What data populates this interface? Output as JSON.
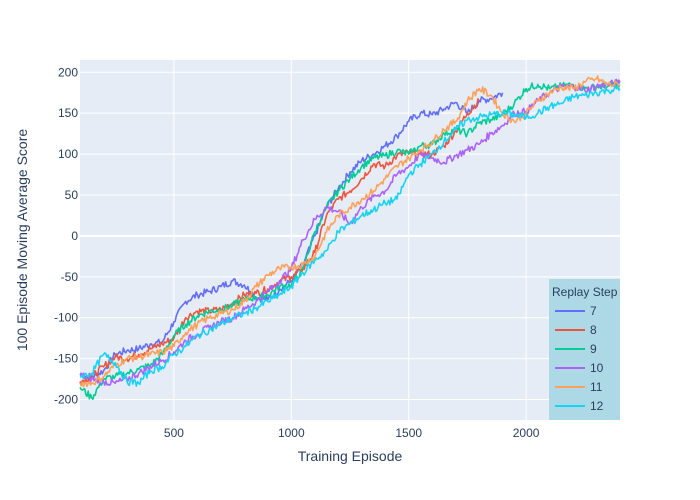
{
  "chart_data": {
    "type": "line",
    "title": "",
    "xlabel": "Training Episode",
    "ylabel": "100 Episode Moving Average Score",
    "xlim": [
      100,
      2400
    ],
    "ylim": [
      -225,
      215
    ],
    "x_ticks": [
      500,
      1000,
      1500,
      2000
    ],
    "y_ticks": [
      -200,
      -150,
      -100,
      -50,
      0,
      50,
      100,
      150,
      200
    ],
    "grid": true,
    "legend": {
      "title": "Replay Step",
      "placement": "bottom-right"
    },
    "series": [
      {
        "name": "7",
        "color": "#636efa",
        "points": [
          [
            100,
            -170
          ],
          [
            150,
            -172
          ],
          [
            200,
            -165
          ],
          [
            250,
            -145
          ],
          [
            300,
            -140
          ],
          [
            350,
            -138
          ],
          [
            400,
            -132
          ],
          [
            450,
            -130
          ],
          [
            500,
            -105
          ],
          [
            550,
            -80
          ],
          [
            600,
            -72
          ],
          [
            650,
            -68
          ],
          [
            700,
            -62
          ],
          [
            750,
            -55
          ],
          [
            800,
            -60
          ],
          [
            850,
            -75
          ],
          [
            900,
            -78
          ],
          [
            950,
            -65
          ],
          [
            1000,
            -55
          ],
          [
            1050,
            -35
          ],
          [
            1100,
            0
          ],
          [
            1150,
            35
          ],
          [
            1200,
            58
          ],
          [
            1250,
            78
          ],
          [
            1300,
            92
          ],
          [
            1350,
            100
          ],
          [
            1400,
            110
          ],
          [
            1450,
            122
          ],
          [
            1500,
            140
          ],
          [
            1550,
            150
          ],
          [
            1600,
            148
          ],
          [
            1650,
            155
          ],
          [
            1700,
            163
          ],
          [
            1750,
            150
          ],
          [
            1800,
            165
          ],
          [
            1850,
            168
          ],
          [
            1900,
            175
          ]
        ]
      },
      {
        "name": "8",
        "color": "#ef553b",
        "points": [
          [
            100,
            -178
          ],
          [
            150,
            -172
          ],
          [
            200,
            -160
          ],
          [
            250,
            -148
          ],
          [
            300,
            -150
          ],
          [
            350,
            -145
          ],
          [
            400,
            -138
          ],
          [
            450,
            -132
          ],
          [
            500,
            -125
          ],
          [
            550,
            -100
          ],
          [
            600,
            -92
          ],
          [
            650,
            -92
          ],
          [
            700,
            -90
          ],
          [
            750,
            -82
          ],
          [
            800,
            -72
          ],
          [
            850,
            -70
          ],
          [
            900,
            -65
          ],
          [
            950,
            -55
          ],
          [
            1000,
            -50
          ],
          [
            1050,
            -40
          ],
          [
            1100,
            -20
          ],
          [
            1150,
            25
          ],
          [
            1200,
            45
          ],
          [
            1250,
            55
          ],
          [
            1300,
            70
          ],
          [
            1350,
            88
          ],
          [
            1400,
            85
          ],
          [
            1450,
            98
          ],
          [
            1500,
            102
          ],
          [
            1550,
            100
          ],
          [
            1600,
            100
          ],
          [
            1650,
            110
          ],
          [
            1700,
            128
          ],
          [
            1750,
            150
          ],
          [
            1800,
            165
          ]
        ]
      },
      {
        "name": "9",
        "color": "#00cc96",
        "points": [
          [
            100,
            -185
          ],
          [
            150,
            -198
          ],
          [
            200,
            -175
          ],
          [
            250,
            -172
          ],
          [
            300,
            -168
          ],
          [
            350,
            -163
          ],
          [
            400,
            -158
          ],
          [
            450,
            -145
          ],
          [
            500,
            -122
          ],
          [
            550,
            -108
          ],
          [
            600,
            -98
          ],
          [
            650,
            -92
          ],
          [
            700,
            -90
          ],
          [
            750,
            -85
          ],
          [
            800,
            -78
          ],
          [
            850,
            -75
          ],
          [
            900,
            -72
          ],
          [
            950,
            -62
          ],
          [
            1000,
            -60
          ],
          [
            1050,
            -40
          ],
          [
            1100,
            5
          ],
          [
            1150,
            35
          ],
          [
            1200,
            55
          ],
          [
            1250,
            70
          ],
          [
            1300,
            85
          ],
          [
            1350,
            95
          ],
          [
            1400,
            98
          ],
          [
            1450,
            104
          ],
          [
            1500,
            100
          ],
          [
            1550,
            110
          ],
          [
            1600,
            112
          ],
          [
            1650,
            125
          ],
          [
            1700,
            130
          ],
          [
            1750,
            125
          ],
          [
            1800,
            138
          ],
          [
            1850,
            142
          ],
          [
            1900,
            148
          ],
          [
            1950,
            162
          ],
          [
            2000,
            180
          ],
          [
            2050,
            185
          ],
          [
            2100,
            180
          ],
          [
            2150,
            183
          ],
          [
            2200,
            185
          ],
          [
            2250,
            180
          ],
          [
            2300,
            182
          ],
          [
            2350,
            183
          ],
          [
            2400,
            188
          ]
        ]
      },
      {
        "name": "10",
        "color": "#ab63fa",
        "points": [
          [
            100,
            -170
          ],
          [
            150,
            -175
          ],
          [
            200,
            -178
          ],
          [
            250,
            -180
          ],
          [
            300,
            -175
          ],
          [
            350,
            -168
          ],
          [
            400,
            -160
          ],
          [
            450,
            -152
          ],
          [
            500,
            -142
          ],
          [
            550,
            -128
          ],
          [
            600,
            -120
          ],
          [
            650,
            -112
          ],
          [
            700,
            -105
          ],
          [
            750,
            -100
          ],
          [
            800,
            -90
          ],
          [
            850,
            -80
          ],
          [
            900,
            -68
          ],
          [
            950,
            -55
          ],
          [
            1000,
            -40
          ],
          [
            1050,
            -5
          ],
          [
            1100,
            20
          ],
          [
            1150,
            35
          ],
          [
            1200,
            30
          ],
          [
            1250,
            15
          ],
          [
            1300,
            35
          ],
          [
            1350,
            48
          ],
          [
            1400,
            55
          ],
          [
            1450,
            75
          ],
          [
            1500,
            85
          ],
          [
            1550,
            100
          ],
          [
            1600,
            95
          ],
          [
            1650,
            90
          ],
          [
            1700,
            98
          ],
          [
            1750,
            105
          ],
          [
            1800,
            112
          ],
          [
            1850,
            125
          ],
          [
            1900,
            135
          ],
          [
            1950,
            150
          ],
          [
            2000,
            152
          ],
          [
            2050,
            165
          ],
          [
            2100,
            175
          ],
          [
            2150,
            182
          ],
          [
            2200,
            183
          ],
          [
            2250,
            178
          ],
          [
            2300,
            183
          ],
          [
            2350,
            185
          ],
          [
            2400,
            188
          ]
        ]
      },
      {
        "name": "11",
        "color": "#ffa15a",
        "points": [
          [
            100,
            -180
          ],
          [
            150,
            -180
          ],
          [
            200,
            -172
          ],
          [
            250,
            -158
          ],
          [
            300,
            -150
          ],
          [
            350,
            -148
          ],
          [
            400,
            -145
          ],
          [
            450,
            -142
          ],
          [
            500,
            -135
          ],
          [
            550,
            -118
          ],
          [
            600,
            -108
          ],
          [
            650,
            -100
          ],
          [
            700,
            -95
          ],
          [
            750,
            -90
          ],
          [
            800,
            -80
          ],
          [
            850,
            -62
          ],
          [
            900,
            -48
          ],
          [
            950,
            -40
          ],
          [
            1000,
            -38
          ],
          [
            1050,
            -35
          ],
          [
            1100,
            -25
          ],
          [
            1150,
            5
          ],
          [
            1200,
            25
          ],
          [
            1250,
            35
          ],
          [
            1300,
            45
          ],
          [
            1350,
            55
          ],
          [
            1400,
            70
          ],
          [
            1450,
            85
          ],
          [
            1500,
            95
          ],
          [
            1550,
            105
          ],
          [
            1600,
            115
          ],
          [
            1650,
            130
          ],
          [
            1700,
            140
          ],
          [
            1750,
            165
          ],
          [
            1800,
            180
          ],
          [
            1850,
            172
          ],
          [
            1900,
            150
          ],
          [
            1950,
            140
          ],
          [
            2000,
            150
          ],
          [
            2050,
            165
          ],
          [
            2100,
            175
          ],
          [
            2150,
            182
          ],
          [
            2200,
            180
          ],
          [
            2250,
            188
          ],
          [
            2300,
            192
          ],
          [
            2350,
            185
          ],
          [
            2400,
            185
          ]
        ]
      },
      {
        "name": "12",
        "color": "#19d3f3",
        "points": [
          [
            100,
            -172
          ],
          [
            150,
            -168
          ],
          [
            200,
            -145
          ],
          [
            250,
            -155
          ],
          [
            300,
            -178
          ],
          [
            350,
            -180
          ],
          [
            400,
            -165
          ],
          [
            450,
            -160
          ],
          [
            500,
            -145
          ],
          [
            550,
            -135
          ],
          [
            600,
            -122
          ],
          [
            650,
            -115
          ],
          [
            700,
            -108
          ],
          [
            750,
            -100
          ],
          [
            800,
            -95
          ],
          [
            850,
            -88
          ],
          [
            900,
            -80
          ],
          [
            950,
            -72
          ],
          [
            1000,
            -62
          ],
          [
            1050,
            -45
          ],
          [
            1100,
            -30
          ],
          [
            1150,
            -18
          ],
          [
            1200,
            5
          ],
          [
            1250,
            15
          ],
          [
            1300,
            25
          ],
          [
            1350,
            32
          ],
          [
            1400,
            40
          ],
          [
            1450,
            45
          ],
          [
            1500,
            75
          ],
          [
            1550,
            88
          ],
          [
            1600,
            100
          ],
          [
            1650,
            115
          ],
          [
            1700,
            130
          ],
          [
            1750,
            142
          ],
          [
            1800,
            145
          ],
          [
            1850,
            148
          ],
          [
            1900,
            150
          ],
          [
            1950,
            148
          ],
          [
            2000,
            145
          ],
          [
            2050,
            150
          ],
          [
            2100,
            158
          ],
          [
            2150,
            162
          ],
          [
            2200,
            170
          ],
          [
            2250,
            172
          ],
          [
            2300,
            175
          ],
          [
            2350,
            178
          ],
          [
            2400,
            180
          ]
        ]
      }
    ]
  }
}
